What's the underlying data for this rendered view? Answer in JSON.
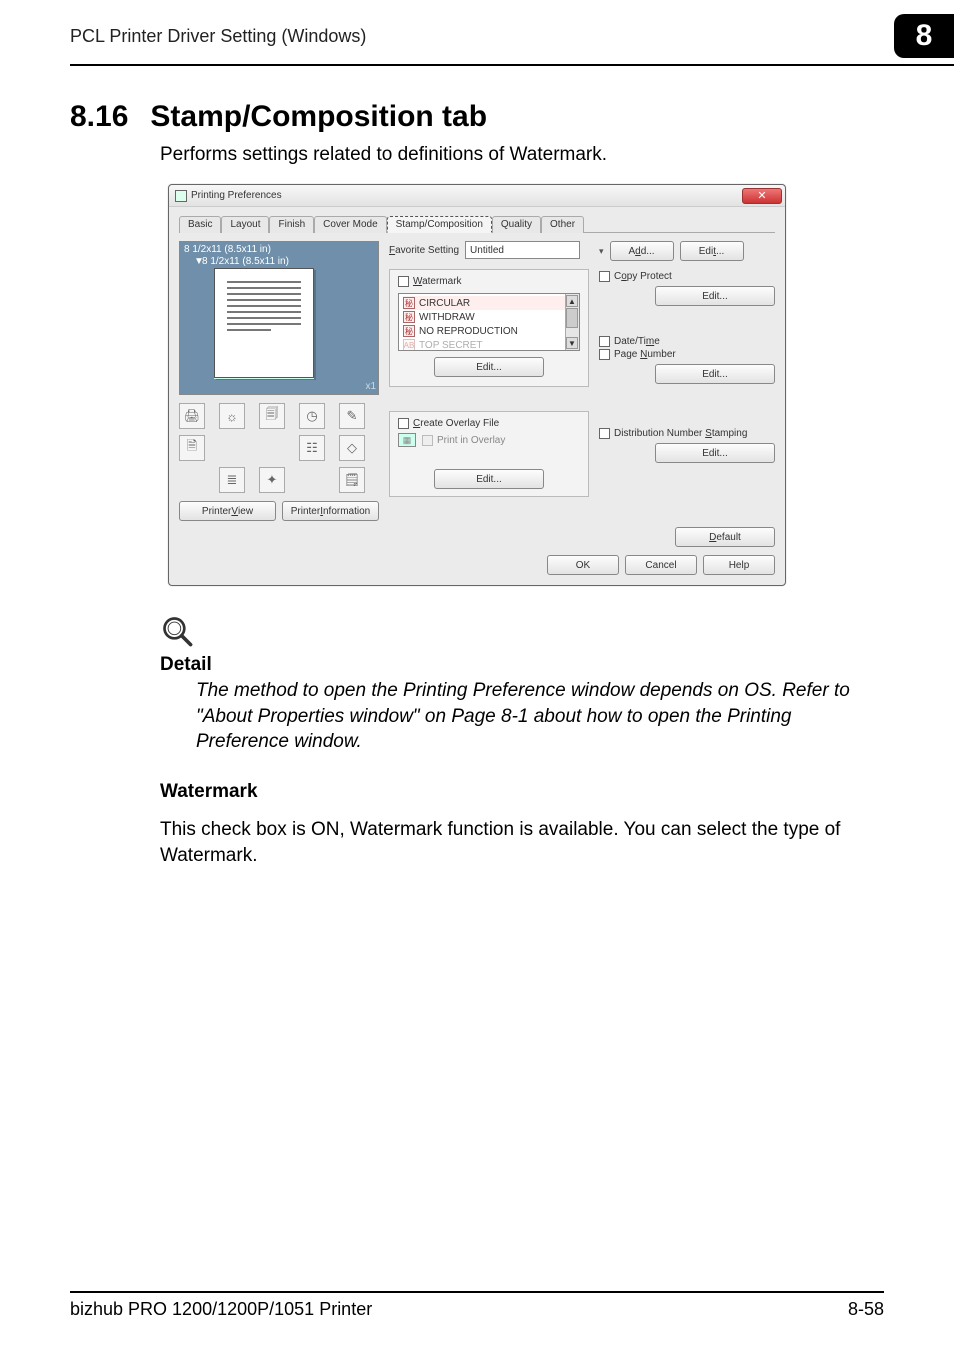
{
  "header": {
    "left": "PCL Printer Driver Setting (Windows)",
    "chapter": "8"
  },
  "section": {
    "number": "8.16",
    "title": "Stamp/Composition tab",
    "intro": "Performs settings related to definitions of Watermark."
  },
  "dialog": {
    "title": "Printing Preferences",
    "close_glyph": "✕",
    "tabs": {
      "basic": "Basic",
      "layout": "Layout",
      "finish": "Finish",
      "cover_mode": "Cover Mode",
      "stamp": "Stamp/Composition",
      "quality": "Quality",
      "other": "Other"
    },
    "preview": {
      "size_top": "8 1/2x11 (8.5x11 in)",
      "size_shift": "8 1/2x11 (8.5x11 in)",
      "zoom_badge": "x1"
    },
    "left_buttons": {
      "printer_view": "Printer View",
      "printer_info": "Printer Information"
    },
    "favorite": {
      "label": "Favorite Setting",
      "value": "Untitled",
      "add": "Add...",
      "edit": "Edit..."
    },
    "watermark": {
      "label": "Watermark",
      "items": [
        "CIRCULAR",
        "WITHDRAW",
        "NO REPRODUCTION",
        "TOP SECRET"
      ],
      "edit": "Edit..."
    },
    "overlay": {
      "create": "Create Overlay File",
      "print_in": "Print in Overlay",
      "edit": "Edit..."
    },
    "copy_protect": {
      "label": "Copy Protect",
      "edit": "Edit..."
    },
    "datetime": {
      "date": "Date/Time",
      "page_num": "Page Number",
      "edit": "Edit..."
    },
    "dist": {
      "label": "Distribution Number Stamping",
      "edit": "Edit..."
    },
    "default_btn": "Default",
    "footer": {
      "ok": "OK",
      "cancel": "Cancel",
      "help": "Help"
    }
  },
  "detail": {
    "heading": "Detail",
    "body": "The method to open the Printing Preference window depends on OS. Refer to \"About Properties window\" on Page 8-1 about how to open the Printing Preference window."
  },
  "watermark_section": {
    "heading": "Watermark",
    "body": "This check box is ON, Watermark function is available. You can select the type of Watermark."
  },
  "footer": {
    "left": "bizhub PRO 1200/1200P/1051 Printer",
    "right": "8-58"
  }
}
